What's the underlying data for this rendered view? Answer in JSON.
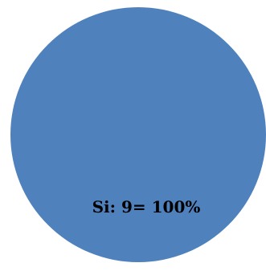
{
  "chart_data": {
    "type": "pie",
    "categories": [
      "Si"
    ],
    "values": [
      9
    ],
    "percentages": [
      100
    ],
    "data_labels": [
      "Si: 9= 100%"
    ],
    "colors": [
      "#4f81bd"
    ],
    "title": "",
    "legend": "none"
  }
}
